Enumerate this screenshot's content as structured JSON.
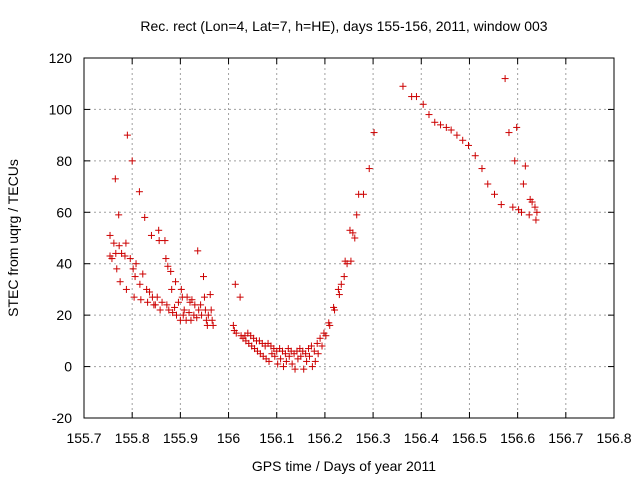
{
  "chart_data": {
    "type": "scatter",
    "title": "Rec. rect (Lon=4, Lat=7, h=HE), days 155-156, 2011, window 003",
    "xlabel": "GPS time / Days of year 2011",
    "ylabel": "STEC from uqrg / TECUs",
    "xlim": [
      155.7,
      156.8
    ],
    "ylim": [
      -20,
      120
    ],
    "xticks": [
      "155.7",
      "155.8",
      "155.9",
      "156",
      "156.1",
      "156.2",
      "156.3",
      "156.4",
      "156.5",
      "156.6",
      "156.7",
      "156.8"
    ],
    "yticks": [
      "-20",
      "0",
      "20",
      "40",
      "60",
      "80",
      "100",
      "120"
    ],
    "grid": true,
    "marker": "+",
    "color": "#cc0000",
    "points": [
      [
        155.754,
        51
      ],
      [
        155.754,
        43
      ],
      [
        155.758,
        42
      ],
      [
        155.762,
        48
      ],
      [
        155.765,
        73
      ],
      [
        155.766,
        44
      ],
      [
        155.768,
        38
      ],
      [
        155.772,
        59
      ],
      [
        155.773,
        47
      ],
      [
        155.775,
        33
      ],
      [
        155.778,
        44
      ],
      [
        155.785,
        43
      ],
      [
        155.787,
        48
      ],
      [
        155.788,
        30
      ],
      [
        155.79,
        90
      ],
      [
        155.796,
        42
      ],
      [
        155.8,
        80
      ],
      [
        155.802,
        38
      ],
      [
        155.804,
        27
      ],
      [
        155.806,
        35
      ],
      [
        155.808,
        40
      ],
      [
        155.815,
        68
      ],
      [
        155.816,
        32
      ],
      [
        155.818,
        26
      ],
      [
        155.822,
        36
      ],
      [
        155.826,
        58
      ],
      [
        155.83,
        30
      ],
      [
        155.832,
        25
      ],
      [
        155.836,
        29
      ],
      [
        155.84,
        51
      ],
      [
        155.842,
        27
      ],
      [
        155.845,
        24
      ],
      [
        155.848,
        24
      ],
      [
        155.852,
        27
      ],
      [
        155.855,
        53
      ],
      [
        155.856,
        49
      ],
      [
        155.858,
        22
      ],
      [
        155.862,
        25
      ],
      [
        155.868,
        49
      ],
      [
        155.87,
        42
      ],
      [
        155.872,
        24
      ],
      [
        155.874,
        39
      ],
      [
        155.876,
        22
      ],
      [
        155.88,
        37
      ],
      [
        155.882,
        30
      ],
      [
        155.884,
        21
      ],
      [
        155.888,
        23
      ],
      [
        155.89,
        33
      ],
      [
        155.892,
        20
      ],
      [
        155.896,
        25
      ],
      [
        155.9,
        18
      ],
      [
        155.902,
        30
      ],
      [
        155.904,
        27
      ],
      [
        155.906,
        20
      ],
      [
        155.908,
        22
      ],
      [
        155.912,
        18
      ],
      [
        155.914,
        27
      ],
      [
        155.918,
        21
      ],
      [
        155.92,
        25
      ],
      [
        155.922,
        18
      ],
      [
        155.924,
        26
      ],
      [
        155.928,
        20
      ],
      [
        155.93,
        24
      ],
      [
        155.934,
        19
      ],
      [
        155.936,
        45
      ],
      [
        155.938,
        22
      ],
      [
        155.942,
        24
      ],
      [
        155.944,
        20
      ],
      [
        155.948,
        35
      ],
      [
        155.95,
        27
      ],
      [
        155.952,
        22
      ],
      [
        155.954,
        18
      ],
      [
        155.956,
        16
      ],
      [
        155.958,
        20
      ],
      [
        155.962,
        28
      ],
      [
        155.964,
        22
      ],
      [
        155.966,
        18
      ],
      [
        155.968,
        16
      ],
      [
        156.01,
        16
      ],
      [
        156.012,
        14
      ],
      [
        156.014,
        32
      ],
      [
        156.016,
        13
      ],
      [
        156.024,
        27
      ],
      [
        156.026,
        12
      ],
      [
        156.03,
        11
      ],
      [
        156.034,
        12
      ],
      [
        156.036,
        10
      ],
      [
        156.04,
        13
      ],
      [
        156.042,
        9
      ],
      [
        156.046,
        12
      ],
      [
        156.048,
        8
      ],
      [
        156.052,
        11
      ],
      [
        156.054,
        7
      ],
      [
        156.058,
        10
      ],
      [
        156.06,
        6
      ],
      [
        156.064,
        10
      ],
      [
        156.066,
        5
      ],
      [
        156.07,
        9
      ],
      [
        156.072,
        4
      ],
      [
        156.076,
        8
      ],
      [
        156.078,
        3
      ],
      [
        156.082,
        9
      ],
      [
        156.084,
        2
      ],
      [
        156.088,
        8
      ],
      [
        156.09,
        5
      ],
      [
        156.094,
        7
      ],
      [
        156.096,
        4
      ],
      [
        156.1,
        6
      ],
      [
        156.102,
        1
      ],
      [
        156.106,
        7
      ],
      [
        156.108,
        3
      ],
      [
        156.112,
        6
      ],
      [
        156.114,
        0
      ],
      [
        156.118,
        5
      ],
      [
        156.12,
        2
      ],
      [
        156.124,
        7
      ],
      [
        156.126,
        4
      ],
      [
        156.13,
        6
      ],
      [
        156.132,
        1
      ],
      [
        156.136,
        5
      ],
      [
        156.138,
        -1
      ],
      [
        156.142,
        6
      ],
      [
        156.144,
        3
      ],
      [
        156.148,
        7
      ],
      [
        156.15,
        4
      ],
      [
        156.154,
        6
      ],
      [
        156.156,
        -1
      ],
      [
        156.16,
        5
      ],
      [
        156.162,
        2
      ],
      [
        156.166,
        7
      ],
      [
        156.168,
        4
      ],
      [
        156.172,
        8
      ],
      [
        156.174,
        0
      ],
      [
        156.178,
        6
      ],
      [
        156.18,
        2
      ],
      [
        156.184,
        9
      ],
      [
        156.186,
        5
      ],
      [
        156.19,
        11
      ],
      [
        156.194,
        8
      ],
      [
        156.198,
        13
      ],
      [
        156.202,
        12
      ],
      [
        156.208,
        17
      ],
      [
        156.21,
        16
      ],
      [
        156.218,
        23
      ],
      [
        156.22,
        22
      ],
      [
        156.228,
        30
      ],
      [
        156.23,
        28
      ],
      [
        156.234,
        32
      ],
      [
        156.24,
        35
      ],
      [
        156.242,
        41
      ],
      [
        156.246,
        40
      ],
      [
        156.252,
        53
      ],
      [
        156.254,
        41
      ],
      [
        156.258,
        52
      ],
      [
        156.262,
        50
      ],
      [
        156.266,
        59
      ],
      [
        156.27,
        67
      ],
      [
        156.28,
        67
      ],
      [
        156.292,
        77
      ],
      [
        156.302,
        91
      ],
      [
        156.362,
        109
      ],
      [
        156.38,
        105
      ],
      [
        156.39,
        105
      ],
      [
        156.404,
        102
      ],
      [
        156.416,
        98
      ],
      [
        156.428,
        95
      ],
      [
        156.44,
        94
      ],
      [
        156.452,
        93
      ],
      [
        156.462,
        92
      ],
      [
        156.474,
        90
      ],
      [
        156.486,
        88
      ],
      [
        156.498,
        86
      ],
      [
        156.512,
        82
      ],
      [
        156.526,
        77
      ],
      [
        156.538,
        71
      ],
      [
        156.552,
        67
      ],
      [
        156.566,
        63
      ],
      [
        156.574,
        112
      ],
      [
        156.582,
        91
      ],
      [
        156.59,
        62
      ],
      [
        156.594,
        80
      ],
      [
        156.598,
        93
      ],
      [
        156.602,
        61
      ],
      [
        156.608,
        60
      ],
      [
        156.612,
        71
      ],
      [
        156.616,
        78
      ],
      [
        156.624,
        59
      ],
      [
        156.626,
        65
      ],
      [
        156.63,
        64
      ],
      [
        156.636,
        62
      ],
      [
        156.638,
        57
      ],
      [
        156.64,
        60
      ]
    ]
  }
}
